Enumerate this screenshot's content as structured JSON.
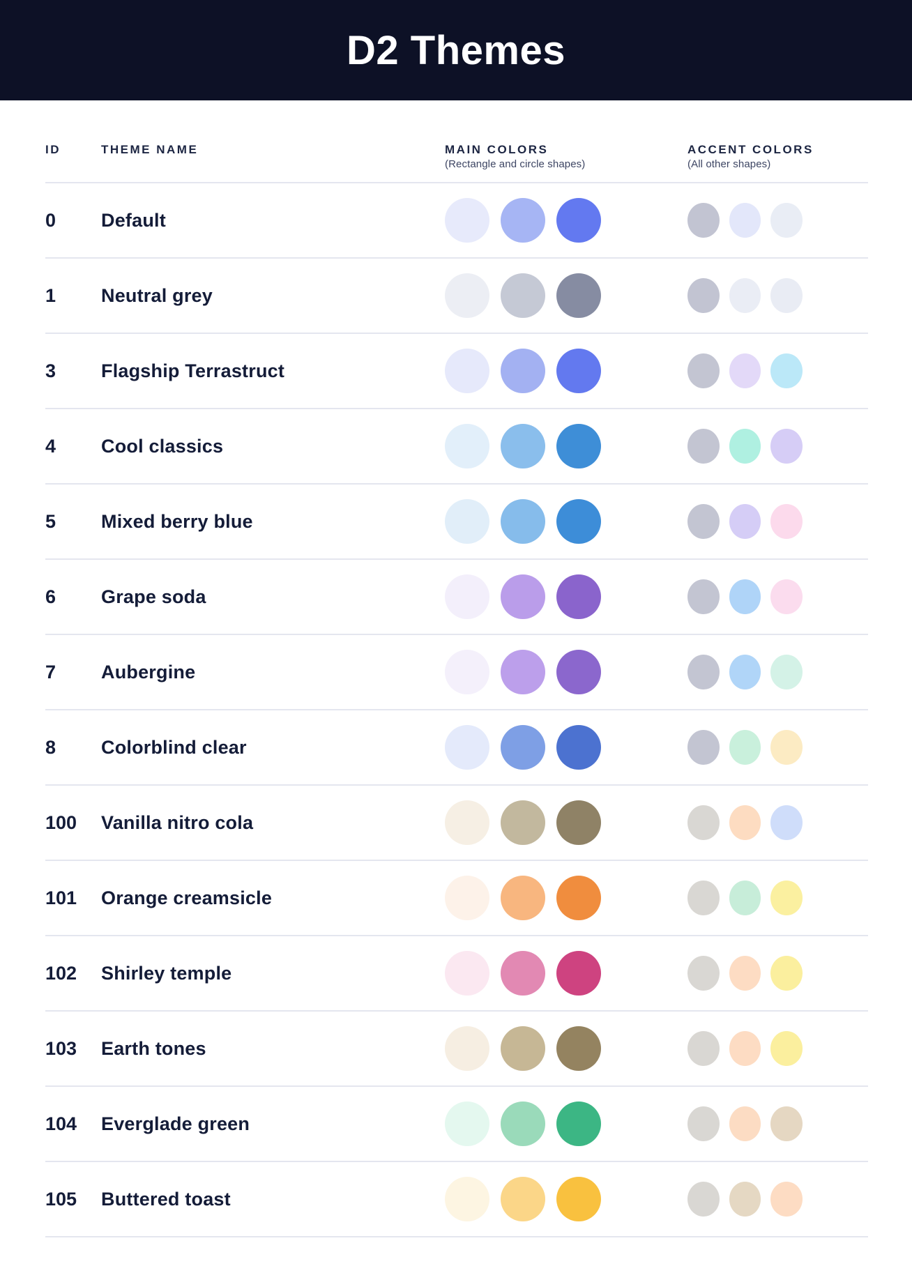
{
  "header": {
    "title": "D2 Themes",
    "background": "#0D1126",
    "title_color": "#FFFFFF"
  },
  "table": {
    "columns": {
      "id_label": "ID",
      "name_label": "THEME NAME",
      "main_label": "MAIN COLORS",
      "main_caption": "(Rectangle and circle shapes)",
      "accent_label": "ACCENT COLORS",
      "accent_caption": "(All other shapes)"
    },
    "themes": [
      {
        "id": "0",
        "name": "Default",
        "main_colors": [
          "#E7EAFB",
          "#A6B5F4",
          "#6379F0"
        ],
        "accent_colors": [
          "#C2C4D2",
          "#E3E7FA",
          "#E9EDF5"
        ]
      },
      {
        "id": "1",
        "name": "Neutral grey",
        "main_colors": [
          "#ECEEF4",
          "#C5C9D5",
          "#868CA2"
        ],
        "accent_colors": [
          "#C2C4D2",
          "#EAEDF5",
          "#E9ECF4"
        ]
      },
      {
        "id": "3",
        "name": "Flagship Terrastruct",
        "main_colors": [
          "#E6E9FB",
          "#A3B1F2",
          "#6379EF"
        ],
        "accent_colors": [
          "#C3C5D2",
          "#E3D9F8",
          "#BBE8F8"
        ]
      },
      {
        "id": "4",
        "name": "Cool classics",
        "main_colors": [
          "#E2EFFA",
          "#8ABEEC",
          "#3E8ED7"
        ],
        "accent_colors": [
          "#C3C5D2",
          "#AFF0E1",
          "#D6CDF6"
        ]
      },
      {
        "id": "5",
        "name": "Mixed berry blue",
        "main_colors": [
          "#E1EEF9",
          "#86BCEB",
          "#3D8DD8"
        ],
        "accent_colors": [
          "#C3C5D2",
          "#D5CDF6",
          "#FCDAEC"
        ]
      },
      {
        "id": "6",
        "name": "Grape soda",
        "main_colors": [
          "#F3EFFB",
          "#BA9DEA",
          "#8A64CC"
        ],
        "accent_colors": [
          "#C3C5D2",
          "#AFD4F8",
          "#FBDCEE"
        ]
      },
      {
        "id": "7",
        "name": "Aubergine",
        "main_colors": [
          "#F4F0FB",
          "#BC9FEB",
          "#8B67CD"
        ],
        "accent_colors": [
          "#C3C5D2",
          "#B0D5F8",
          "#D4F2E7"
        ]
      },
      {
        "id": "8",
        "name": "Colorblind clear",
        "main_colors": [
          "#E4EAFB",
          "#7E9FE5",
          "#4C72D0"
        ],
        "accent_colors": [
          "#C3C5D2",
          "#C9F0DC",
          "#FCEBC3"
        ]
      },
      {
        "id": "100",
        "name": "Vanilla nitro cola",
        "main_colors": [
          "#F6EFE4",
          "#C2B89E",
          "#8F8266"
        ],
        "accent_colors": [
          "#D9D7D3",
          "#FDDCC1",
          "#CFDDFA"
        ]
      },
      {
        "id": "101",
        "name": "Orange creamsicle",
        "main_colors": [
          "#FDF2E9",
          "#F8B67F",
          "#F08D3E"
        ],
        "accent_colors": [
          "#D9D7D3",
          "#C7EDD9",
          "#FBF0A0"
        ]
      },
      {
        "id": "102",
        "name": "Shirley temple",
        "main_colors": [
          "#FBE8F1",
          "#E289B3",
          "#CE4380"
        ],
        "accent_colors": [
          "#D9D7D3",
          "#FDDCC3",
          "#FBEF9E"
        ]
      },
      {
        "id": "103",
        "name": "Earth tones",
        "main_colors": [
          "#F6EEE2",
          "#C6B795",
          "#948360"
        ],
        "accent_colors": [
          "#D9D7D3",
          "#FDDCC3",
          "#FBEF9E"
        ]
      },
      {
        "id": "104",
        "name": "Everglade green",
        "main_colors": [
          "#E4F8EF",
          "#9ADABA",
          "#3CB684"
        ],
        "accent_colors": [
          "#D9D7D3",
          "#FCDCC3",
          "#E5D7C2"
        ]
      },
      {
        "id": "105",
        "name": "Buttered toast",
        "main_colors": [
          "#FDF5E2",
          "#FBD688",
          "#F9C13F"
        ],
        "accent_colors": [
          "#D9D7D3",
          "#E5D8C3",
          "#FDDCC3"
        ]
      }
    ]
  },
  "colors": {
    "divider": "#E4E6EF",
    "text": "#141C38",
    "caption_text": "#3D4563"
  }
}
